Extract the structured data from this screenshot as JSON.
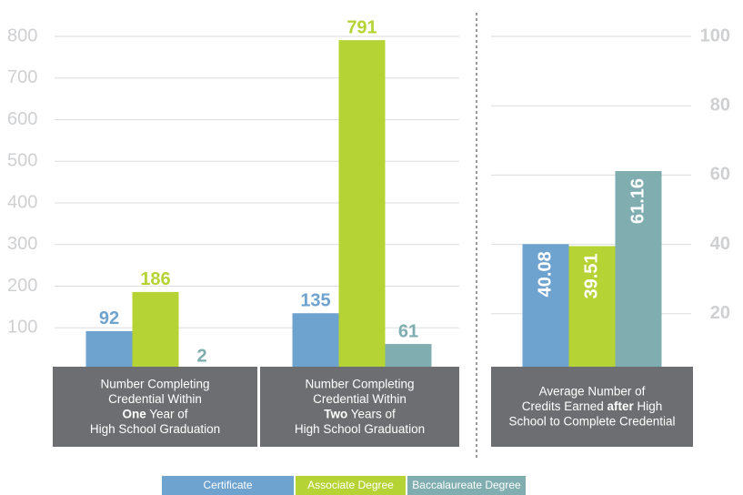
{
  "chart_data": [
    {
      "type": "bar",
      "categories": [
        [
          [
            {
              "text": "Number Completing"
            }
          ],
          [
            {
              "text": "Credential Within"
            }
          ],
          [
            {
              "text": "One",
              "bold": true
            },
            {
              "text": " Year of"
            }
          ],
          [
            {
              "text": "High School Graduation"
            }
          ]
        ],
        [
          [
            {
              "text": "Number Completing"
            }
          ],
          [
            {
              "text": "Credential Within"
            }
          ],
          [
            {
              "text": "Two",
              "bold": true
            },
            {
              "text": " Years of"
            }
          ],
          [
            {
              "text": "High School Graduation"
            }
          ]
        ]
      ],
      "series": [
        {
          "name": "Certificate",
          "color": "#6fa3cf",
          "values": [
            92,
            135
          ]
        },
        {
          "name": "Associate Degree",
          "color": "#b5d334",
          "values": [
            186,
            791
          ]
        },
        {
          "name": "Baccalaureate Degree",
          "color": "#7fadb0",
          "values": [
            2,
            61
          ]
        }
      ],
      "ylim": [
        0,
        800
      ],
      "yticks": [
        100,
        200,
        300,
        400,
        500,
        600,
        700,
        800
      ],
      "grid": true
    },
    {
      "type": "bar",
      "categories": [
        [
          [
            {
              "text": "Average Number of"
            }
          ],
          [
            {
              "text": "Credits Earned "
            },
            {
              "text": "after",
              "bold": true
            },
            {
              "text": " High"
            }
          ],
          [
            {
              "text": "School to Complete Credential"
            }
          ]
        ]
      ],
      "series": [
        {
          "color": "#6fa3cf",
          "values": [
            40.08
          ],
          "axis": "y2"
        },
        {
          "color": "#b5d334",
          "values": [
            39.51
          ],
          "axis": "y2"
        },
        {
          "color": "#7fadb0",
          "values": [
            61.16
          ],
          "axis": "y2"
        }
      ],
      "y2lim": [
        0,
        100
      ],
      "y2ticks": [
        20,
        40,
        60,
        80,
        100
      ],
      "grid": true
    }
  ]
}
